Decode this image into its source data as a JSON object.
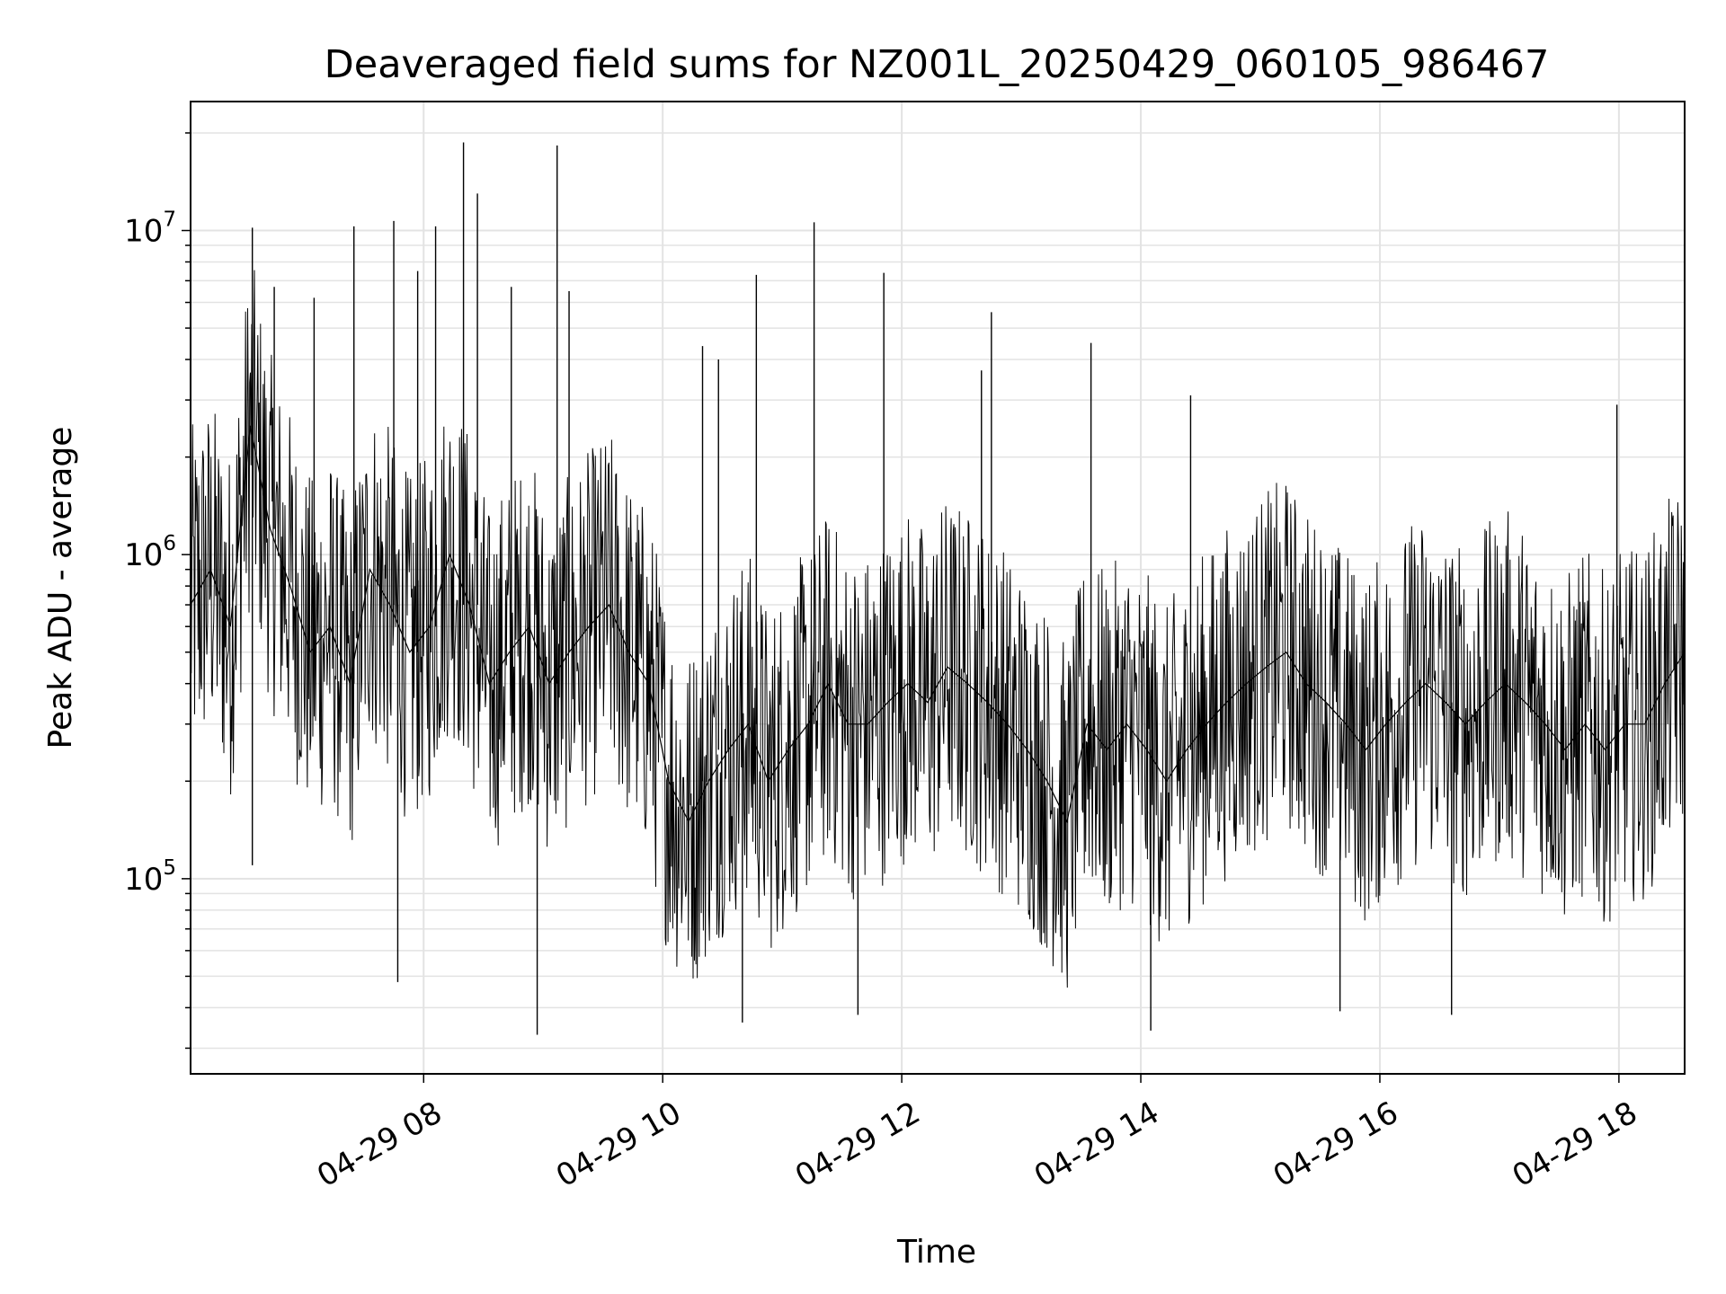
{
  "chart_data": {
    "type": "line",
    "title": "Deaveraged field sums for NZ001L_20250429_060105_986467",
    "xlabel": "Time",
    "ylabel": "Peak ADU - average",
    "x_range": [
      "2025-04-29 06:03",
      "2025-04-29 18:33"
    ],
    "ylim": [
      25000,
      25000000
    ],
    "yscale": "log",
    "grid": true,
    "x_ticks": [
      {
        "value": "2025-04-29 08:00",
        "label": "04-29 08"
      },
      {
        "value": "2025-04-29 10:00",
        "label": "04-29 10"
      },
      {
        "value": "2025-04-29 12:00",
        "label": "04-29 12"
      },
      {
        "value": "2025-04-29 14:00",
        "label": "04-29 14"
      },
      {
        "value": "2025-04-29 16:00",
        "label": "04-29 16"
      },
      {
        "value": "2025-04-29 18:00",
        "label": "04-29 18"
      }
    ],
    "y_ticks": [
      {
        "value": 100000,
        "base": "10",
        "exp": "5"
      },
      {
        "value": 1000000,
        "base": "10",
        "exp": "6"
      },
      {
        "value": 10000000,
        "base": "10",
        "exp": "7"
      }
    ],
    "series": [
      {
        "color": "#000000",
        "x": [
          "2025-04-29 06:03",
          "2025-04-29 06:13",
          "2025-04-29 06:23",
          "2025-04-29 06:33",
          "2025-04-29 06:43",
          "2025-04-29 06:53",
          "2025-04-29 07:03",
          "2025-04-29 07:13",
          "2025-04-29 07:23",
          "2025-04-29 07:33",
          "2025-04-29 07:43",
          "2025-04-29 07:53",
          "2025-04-29 08:03",
          "2025-04-29 08:13",
          "2025-04-29 08:23",
          "2025-04-29 08:33",
          "2025-04-29 08:43",
          "2025-04-29 08:53",
          "2025-04-29 09:03",
          "2025-04-29 09:13",
          "2025-04-29 09:23",
          "2025-04-29 09:33",
          "2025-04-29 09:43",
          "2025-04-29 09:53",
          "2025-04-29 10:03",
          "2025-04-29 10:13",
          "2025-04-29 10:23",
          "2025-04-29 10:33",
          "2025-04-29 10:43",
          "2025-04-29 10:53",
          "2025-04-29 11:03",
          "2025-04-29 11:13",
          "2025-04-29 11:23",
          "2025-04-29 11:33",
          "2025-04-29 11:43",
          "2025-04-29 11:53",
          "2025-04-29 12:03",
          "2025-04-29 12:13",
          "2025-04-29 12:23",
          "2025-04-29 12:33",
          "2025-04-29 12:43",
          "2025-04-29 12:53",
          "2025-04-29 13:03",
          "2025-04-29 13:13",
          "2025-04-29 13:23",
          "2025-04-29 13:33",
          "2025-04-29 13:43",
          "2025-04-29 13:53",
          "2025-04-29 14:03",
          "2025-04-29 14:13",
          "2025-04-29 14:23",
          "2025-04-29 14:33",
          "2025-04-29 14:43",
          "2025-04-29 14:53",
          "2025-04-29 15:03",
          "2025-04-29 15:13",
          "2025-04-29 15:23",
          "2025-04-29 15:33",
          "2025-04-29 15:43",
          "2025-04-29 15:53",
          "2025-04-29 16:03",
          "2025-04-29 16:13",
          "2025-04-29 16:23",
          "2025-04-29 16:33",
          "2025-04-29 16:43",
          "2025-04-29 16:53",
          "2025-04-29 17:03",
          "2025-04-29 17:13",
          "2025-04-29 17:23",
          "2025-04-29 17:33",
          "2025-04-29 17:43",
          "2025-04-29 17:53",
          "2025-04-29 18:03",
          "2025-04-29 18:13",
          "2025-04-29 18:23",
          "2025-04-29 18:33"
        ],
        "y": [
          700000,
          900000,
          600000,
          2500000,
          1200000,
          800000,
          500000,
          600000,
          400000,
          900000,
          700000,
          500000,
          600000,
          1000000,
          700000,
          400000,
          500000,
          600000,
          400000,
          500000,
          600000,
          700000,
          500000,
          400000,
          200000,
          150000,
          200000,
          250000,
          300000,
          200000,
          250000,
          300000,
          400000,
          300000,
          300000,
          350000,
          400000,
          350000,
          450000,
          400000,
          350000,
          300000,
          250000,
          200000,
          150000,
          300000,
          250000,
          300000,
          250000,
          200000,
          250000,
          300000,
          350000,
          400000,
          450000,
          500000,
          400000,
          350000,
          300000,
          250000,
          300000,
          350000,
          400000,
          350000,
          300000,
          350000,
          400000,
          350000,
          300000,
          250000,
          300000,
          250000,
          300000,
          300000,
          400000,
          500000
        ],
        "spikes": [
          {
            "x": "2025-04-29 06:34",
            "y": 10200000
          },
          {
            "x": "2025-04-29 06:45",
            "y": 6700000
          },
          {
            "x": "2025-04-29 07:05",
            "y": 6200000
          },
          {
            "x": "2025-04-29 07:25",
            "y": 10300000
          },
          {
            "x": "2025-04-29 07:45",
            "y": 10700000
          },
          {
            "x": "2025-04-29 07:57",
            "y": 7500000
          },
          {
            "x": "2025-04-29 08:06",
            "y": 10300000
          },
          {
            "x": "2025-04-29 08:20",
            "y": 18700000
          },
          {
            "x": "2025-04-29 08:27",
            "y": 13000000
          },
          {
            "x": "2025-04-29 08:44",
            "y": 6700000
          },
          {
            "x": "2025-04-29 09:07",
            "y": 18300000
          },
          {
            "x": "2025-04-29 09:13",
            "y": 6500000
          },
          {
            "x": "2025-04-29 10:20",
            "y": 4400000
          },
          {
            "x": "2025-04-29 10:28",
            "y": 4000000
          },
          {
            "x": "2025-04-29 10:47",
            "y": 7300000
          },
          {
            "x": "2025-04-29 11:16",
            "y": 10600000
          },
          {
            "x": "2025-04-29 11:51",
            "y": 7400000
          },
          {
            "x": "2025-04-29 12:40",
            "y": 3700000
          },
          {
            "x": "2025-04-29 12:45",
            "y": 5600000
          },
          {
            "x": "2025-04-29 13:35",
            "y": 4500000
          },
          {
            "x": "2025-04-29 14:25",
            "y": 3100000
          },
          {
            "x": "2025-04-29 17:59",
            "y": 2900000
          },
          {
            "x": "2025-04-29 08:57",
            "y": 33000
          },
          {
            "x": "2025-04-29 10:40",
            "y": 36000
          },
          {
            "x": "2025-04-29 11:38",
            "y": 38000
          },
          {
            "x": "2025-04-29 14:05",
            "y": 34000
          },
          {
            "x": "2025-04-29 15:40",
            "y": 39000
          },
          {
            "x": "2025-04-29 16:36",
            "y": 38000
          },
          {
            "x": "2025-04-29 06:34",
            "y": 110000
          },
          {
            "x": "2025-04-29 07:47",
            "y": 48000
          }
        ]
      }
    ]
  }
}
